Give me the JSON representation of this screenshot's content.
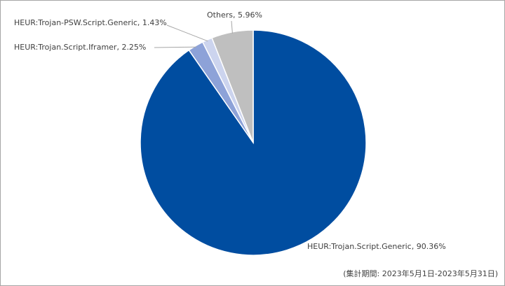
{
  "chart_data": {
    "type": "pie",
    "values": [
      90.36,
      2.25,
      1.43,
      5.96
    ],
    "value_labels": [
      "HEUR:Trojan.Script.Generic, 90.36%",
      "HEUR:Trojan.Script.Iframer, 2.25%",
      "HEUR:Trojan-PSW.Script.Generic, 1.43%",
      "Others, 5.96%"
    ],
    "colors": [
      "#004da0",
      "#8da2d8",
      "#ccd4ee",
      "#bfbfbf"
    ],
    "footnote": "(集計期間: 2023年5月1日-2023年5月31日)"
  }
}
